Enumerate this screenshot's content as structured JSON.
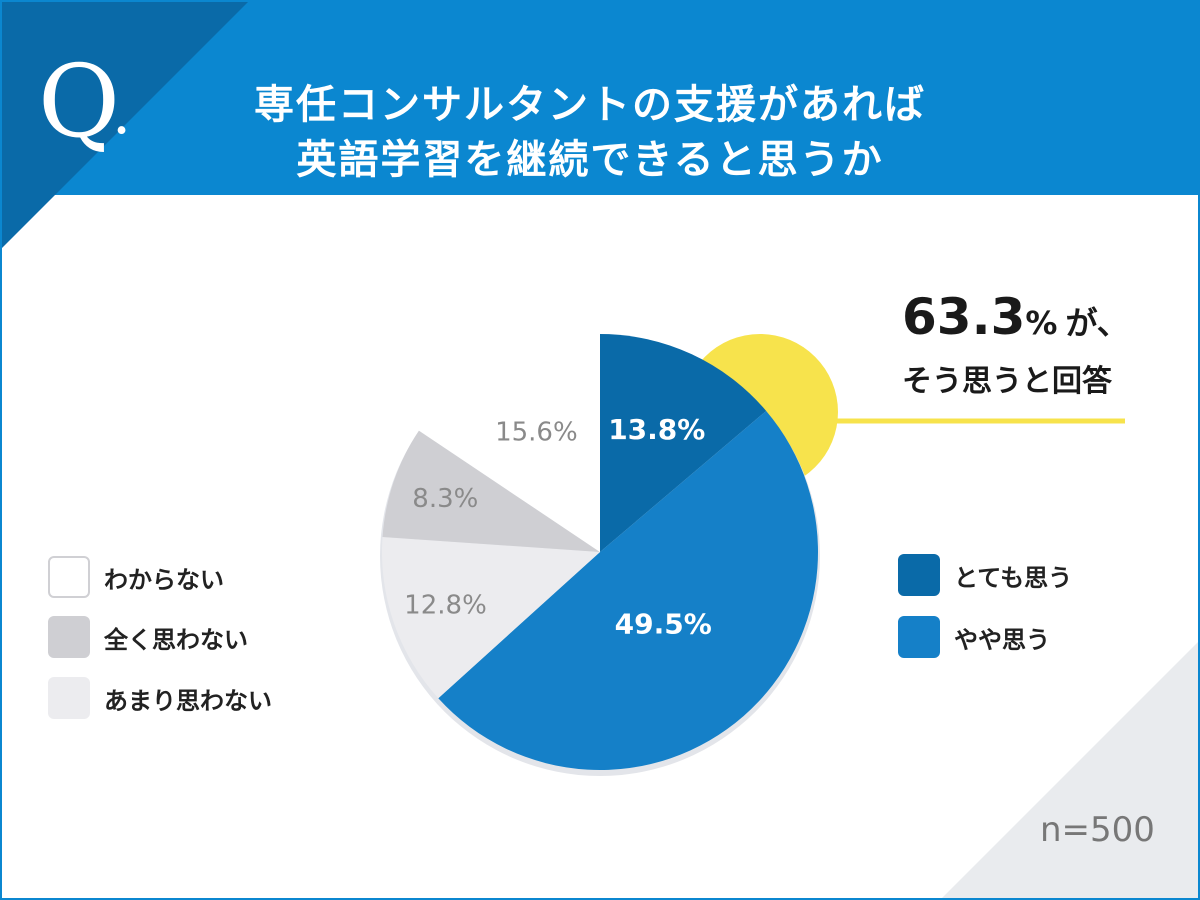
{
  "title": {
    "line1": "専任コンサルタントの支援があれば",
    "line2": "英語学習を継続できると思うか"
  },
  "q_label": {
    "letter": "Q",
    "dot": "."
  },
  "callout": {
    "percent": "63.3",
    "percent_sign": "%",
    "suffix": "が、",
    "sub": "そう思うと回答"
  },
  "sample_size": "n=500",
  "colors": {
    "header_blue": "#0b87d0",
    "header_dark": "#0a6aa8",
    "strongly_agree": "#0a6aa8",
    "somewhat_agree": "#1580c8",
    "dont_know": "#ffffff",
    "strongly_disagree": "#cfcfd3",
    "somewhat_disagree": "#ececef",
    "highlight_yellow": "#f7e34c",
    "corner_gray": "#e9ebee"
  },
  "chart_data": {
    "type": "pie",
    "start_angle_deg": 0,
    "direction": "clockwise",
    "slices": [
      {
        "label": "とても思う",
        "value": 13.8,
        "display": "13.8%",
        "color": "#0a6aa8",
        "label_color": "#ffffff"
      },
      {
        "label": "やや思う",
        "value": 49.5,
        "display": "49.5%",
        "color": "#1580c8",
        "label_color": "#ffffff"
      },
      {
        "label": "あまり思わない",
        "value": 12.8,
        "display": "12.8%",
        "color": "#ececef",
        "label_color": "#8a8a8a"
      },
      {
        "label": "全く思わない",
        "value": 8.3,
        "display": "8.3%",
        "color": "#cfcfd3",
        "label_color": "#8a8a8a"
      },
      {
        "label": "わからない",
        "value": 15.6,
        "display": "15.6%",
        "color": "#ffffff",
        "label_color": "#8a8a8a"
      }
    ],
    "legend_left": [
      "わからない",
      "全く思わない",
      "あまり思わない"
    ],
    "legend_right": [
      "とても思う",
      "やや思う"
    ]
  }
}
